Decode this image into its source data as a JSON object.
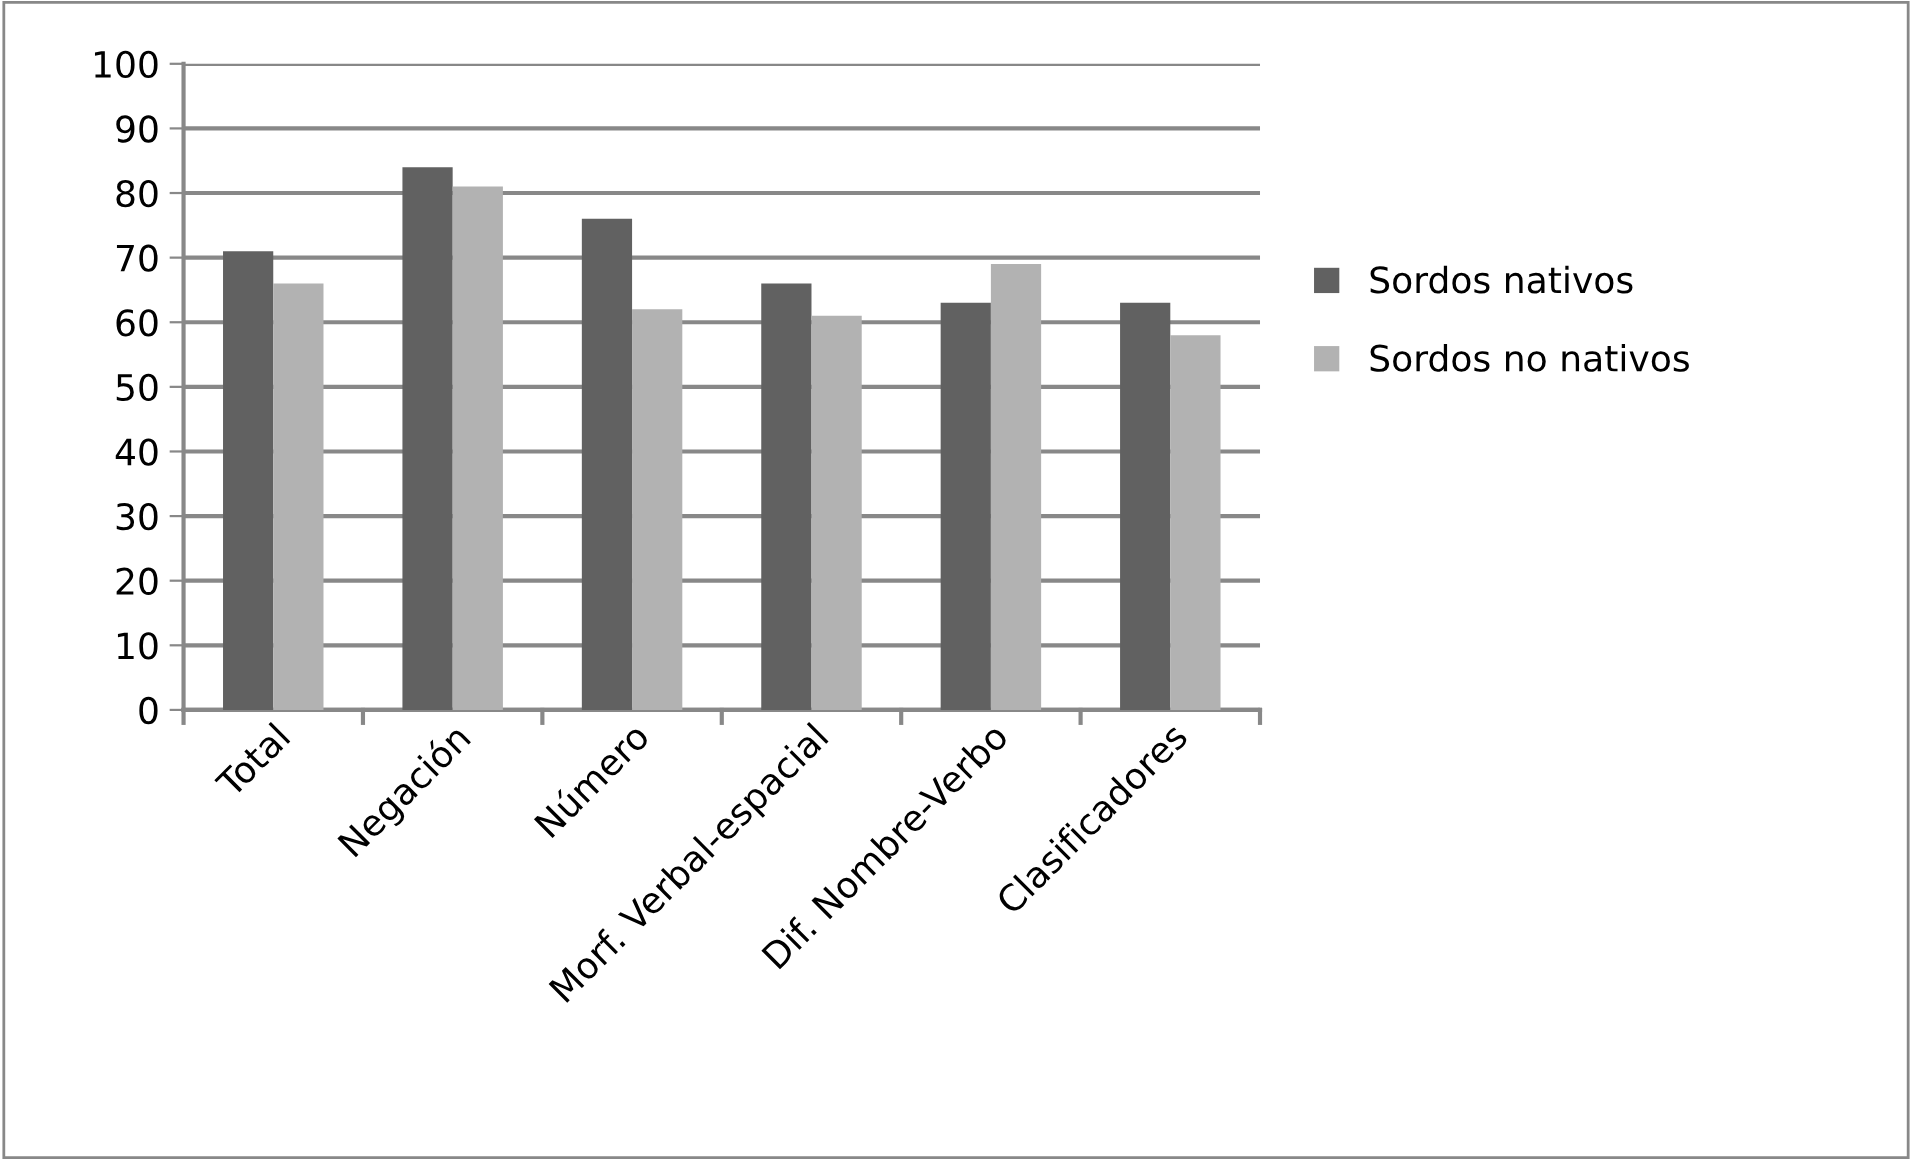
{
  "chart_data": {
    "type": "bar",
    "categories": [
      "Total",
      "Negación",
      "Número",
      "Morf. Verbal-espacial",
      "Dif. Nombre-Verbo",
      "Clasificadores"
    ],
    "series": [
      {
        "name": "Sordos nativos",
        "color": "#616161",
        "values": [
          71,
          84,
          76,
          66,
          63,
          63
        ]
      },
      {
        "name": "Sordos no nativos",
        "color": "#b2b2b2",
        "values": [
          66,
          81,
          62,
          61,
          69,
          58
        ]
      }
    ],
    "ylim": [
      0,
      100
    ],
    "yticks": [
      0,
      10,
      20,
      30,
      40,
      50,
      60,
      70,
      80,
      90,
      100
    ],
    "grid": "y",
    "legend": "right"
  }
}
